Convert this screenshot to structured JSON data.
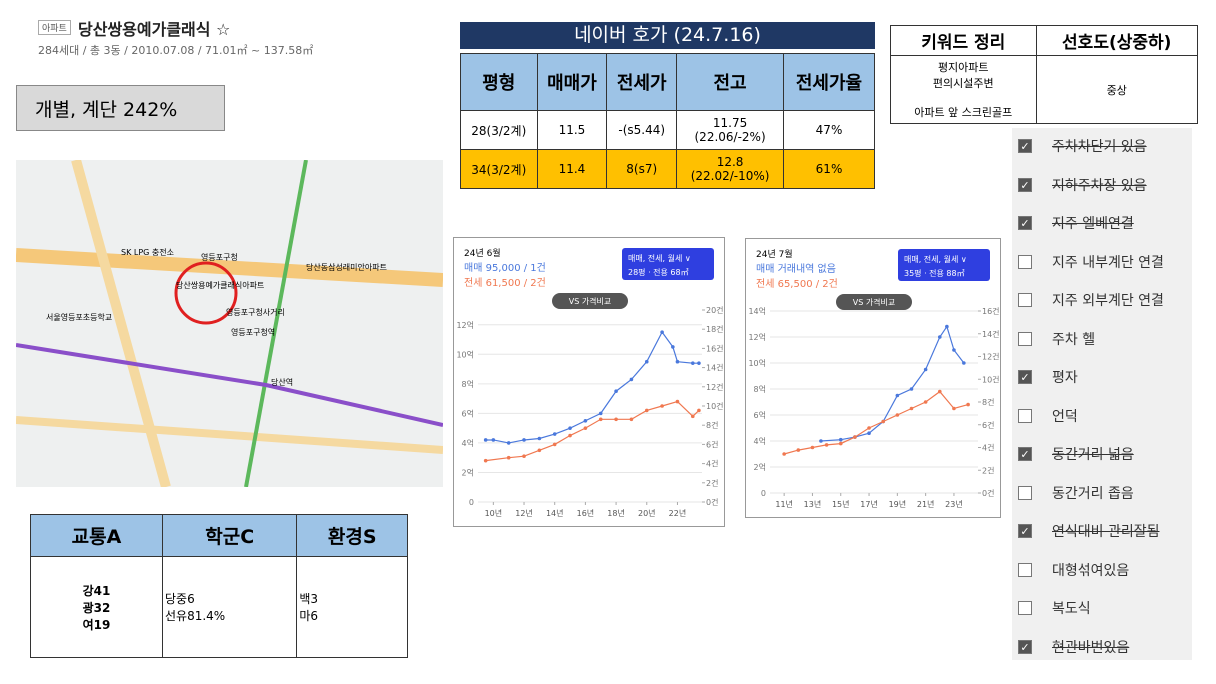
{
  "header": {
    "badge": "아파트",
    "title": "당산쌍용예가클래식 ☆",
    "meta": "284세대 / 총 3동 / 2010.07.08 / 71.01㎡ ~ 137.58㎡"
  },
  "label_box": "개별, 계단 242%",
  "map": {
    "labels": [
      "당산쌍용예가클래식아파트",
      "영등포구청",
      "SK LPG 충전소",
      "당산동삼성래미안아파트",
      "영등포구청역",
      "당산역",
      "서울영등포초등학교",
      "영등포구청사거리"
    ]
  },
  "naver_table": {
    "title": "네이버 호가 (24.7.16)",
    "headers": [
      "평형",
      "매매가",
      "전세가",
      "전고",
      "전세가율"
    ],
    "rows": [
      [
        "28(3/2계)",
        "11.5",
        "-(s5.44)",
        "11.75\n(22.06/-2%)",
        "47%"
      ],
      [
        "34(3/2계)",
        "11.4",
        "8(s7)",
        "12.8\n(22.02/-10%)",
        "61%"
      ]
    ]
  },
  "keyword_table": {
    "headers": [
      "키워드 정리",
      "선호도(상중하)"
    ],
    "keywords": "평지아파트\n편의시설주변\n\n아파트 앞 스크린골프",
    "preference": "중상"
  },
  "checklist": [
    {
      "label": "주차차단기 있음",
      "checked": true,
      "struck": true
    },
    {
      "label": "지하주차장 있음",
      "checked": true,
      "struck": true
    },
    {
      "label": "지주 엘베연결",
      "checked": true,
      "struck": true
    },
    {
      "label": "지주 내부계단 연결",
      "checked": false,
      "struck": false
    },
    {
      "label": "지주 외부계단 연결",
      "checked": false,
      "struck": false
    },
    {
      "label": "주차 헬",
      "checked": false,
      "struck": false
    },
    {
      "label": "평자",
      "checked": true,
      "struck": false
    },
    {
      "label": "언덕",
      "checked": false,
      "struck": false
    },
    {
      "label": "동간거리 넓음",
      "checked": true,
      "struck": true
    },
    {
      "label": "동간거리 좁음",
      "checked": false,
      "struck": false
    },
    {
      "label": "연식대비 관리잘됨",
      "checked": true,
      "struck": true
    },
    {
      "label": "대형섞여있음",
      "checked": false,
      "struck": false
    },
    {
      "label": "복도식",
      "checked": false,
      "struck": false
    },
    {
      "label": "현관바번있음",
      "checked": true,
      "struck": true
    }
  ],
  "score_table": {
    "headers": [
      "교통A",
      "학군C",
      "환경S"
    ],
    "cells": [
      "강41\n광32\n여19",
      "당중6\n선유81.4%",
      "백3\n마6"
    ]
  },
  "chart_data": [
    {
      "type": "line",
      "title": "24년 6월",
      "filter": "매매, 전세, 월세 ∨",
      "size": "28평 · 전용 68㎡",
      "compare": "VS 가격비교",
      "xlim": [
        2009,
        2023.6
      ],
      "xticks": [
        {
          "value": 2010,
          "label": "10년"
        },
        {
          "value": 2012,
          "label": "12년"
        },
        {
          "value": 2014,
          "label": "14년"
        },
        {
          "value": 2016,
          "label": "16년"
        },
        {
          "value": 2018,
          "label": "18년"
        },
        {
          "value": 2020,
          "label": "20년"
        },
        {
          "value": 2022,
          "label": "22년"
        }
      ],
      "ylim": [
        0,
        13
      ],
      "yticks": [
        0,
        {
          "value": 2,
          "label": "2억"
        },
        {
          "value": 4,
          "label": "4억"
        },
        {
          "value": 6,
          "label": "6억"
        },
        {
          "value": 8,
          "label": "8억"
        },
        {
          "value": 10,
          "label": "10억"
        },
        {
          "value": 12,
          "label": "12억"
        }
      ],
      "y2lim": [
        0,
        20
      ],
      "y2ticks": [
        {
          "value": 0,
          "label": "0건"
        },
        {
          "value": 2,
          "label": "2건"
        },
        {
          "value": 4,
          "label": "4건"
        },
        {
          "value": 6,
          "label": "6건"
        },
        {
          "value": 8,
          "label": "8건"
        },
        {
          "value": 10,
          "label": "10건"
        },
        {
          "value": 12,
          "label": "12건"
        },
        {
          "value": 14,
          "label": "14건"
        },
        {
          "value": 16,
          "label": "16건"
        },
        {
          "value": 18,
          "label": "18건"
        },
        {
          "value": 20,
          "label": "20건"
        }
      ],
      "series": [
        {
          "name": "매매 95,000 / 1건",
          "color": "#4a78dc",
          "x": [
            2009.5,
            2010,
            2011,
            2012,
            2013,
            2014,
            2015,
            2016,
            2017,
            2018,
            2019,
            2020,
            2021,
            2021.7,
            2022,
            2023,
            2023.4
          ],
          "values": [
            4.2,
            4.2,
            4.0,
            4.2,
            4.3,
            4.6,
            5.0,
            5.5,
            6.0,
            7.5,
            8.3,
            9.5,
            11.5,
            10.5,
            9.5,
            9.4,
            9.4
          ]
        },
        {
          "name": "전세 61,500 / 2건",
          "color": "#f07850",
          "x": [
            2009.5,
            2011,
            2012,
            2013,
            2014,
            2015,
            2016,
            2017,
            2018,
            2019,
            2020,
            2021,
            2022,
            2023,
            2023.4
          ],
          "values": [
            2.8,
            3.0,
            3.1,
            3.5,
            3.9,
            4.5,
            5.0,
            5.6,
            5.6,
            5.6,
            6.2,
            6.5,
            6.8,
            5.8,
            6.2
          ]
        }
      ]
    },
    {
      "type": "line",
      "title": "24년 7월",
      "filter": "매매, 전세, 월세 ∨",
      "size": "35평 · 전용 88㎡",
      "compare": "VS 가격비교",
      "xlim": [
        2010,
        2024.7
      ],
      "xticks": [
        {
          "value": 2011,
          "label": "11년"
        },
        {
          "value": 2013,
          "label": "13년"
        },
        {
          "value": 2015,
          "label": "15년"
        },
        {
          "value": 2017,
          "label": "17년"
        },
        {
          "value": 2019,
          "label": "19년"
        },
        {
          "value": 2021,
          "label": "21년"
        },
        {
          "value": 2023,
          "label": "23년"
        }
      ],
      "ylim": [
        0,
        14
      ],
      "yticks": [
        0,
        {
          "value": 2,
          "label": "2억"
        },
        {
          "value": 4,
          "label": "4억"
        },
        {
          "value": 6,
          "label": "6억"
        },
        {
          "value": 8,
          "label": "8억"
        },
        {
          "value": 10,
          "label": "10억"
        },
        {
          "value": 12,
          "label": "12억"
        },
        {
          "value": 14,
          "label": "14억"
        }
      ],
      "y2lim": [
        0,
        16
      ],
      "y2ticks": [
        {
          "value": 0,
          "label": "0건"
        },
        {
          "value": 2,
          "label": "2건"
        },
        {
          "value": 4,
          "label": "4건"
        },
        {
          "value": 6,
          "label": "6건"
        },
        {
          "value": 8,
          "label": "8건"
        },
        {
          "value": 10,
          "label": "10건"
        },
        {
          "value": 12,
          "label": "12건"
        },
        {
          "value": 14,
          "label": "14건"
        },
        {
          "value": 16,
          "label": "16건"
        }
      ],
      "series": [
        {
          "name": "매매 거래내역 없음",
          "color": "#4a78dc",
          "x": [
            2013.6,
            2015,
            2016,
            2017,
            2018,
            2019,
            2020,
            2021,
            2022,
            2022.5,
            2023,
            2023.7
          ],
          "values": [
            4.0,
            4.1,
            4.3,
            4.6,
            5.5,
            7.5,
            8.0,
            9.5,
            12.0,
            12.8,
            11.0,
            10.0
          ]
        },
        {
          "name": "전세 65,500 / 2건",
          "color": "#f07850",
          "x": [
            2011,
            2012,
            2013,
            2014,
            2015,
            2016,
            2017,
            2018,
            2019,
            2020,
            2021,
            2022,
            2023,
            2024
          ],
          "values": [
            3.0,
            3.3,
            3.5,
            3.7,
            3.8,
            4.3,
            5.0,
            5.5,
            6.0,
            6.5,
            7.0,
            7.8,
            6.5,
            6.8
          ]
        }
      ]
    }
  ]
}
